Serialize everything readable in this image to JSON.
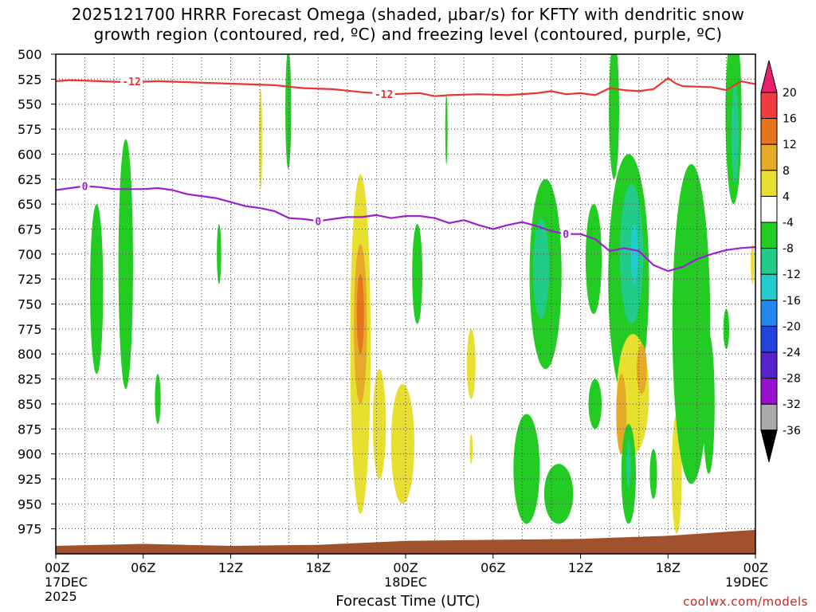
{
  "title": {
    "line1": "2025121700 HRRR Forecast Omega (shaded, μbar/s) for KFTY with dendritic snow",
    "line2": "growth region (contoured, red, ºC) and freezing level (contoured, purple, ºC)"
  },
  "xlabel": "Forecast Time (UTC)",
  "credit": "coolwx.com/models",
  "chart_data": {
    "type": "contour-time-height",
    "station": "KFTY",
    "model": "HRRR",
    "init": "2025121700",
    "x_range_hours": [
      0,
      48
    ],
    "y_range_mb": [
      500,
      1000
    ],
    "y_ticks": [
      500,
      525,
      550,
      575,
      600,
      625,
      650,
      675,
      700,
      725,
      750,
      775,
      800,
      825,
      850,
      875,
      900,
      925,
      950,
      975
    ],
    "x_ticks": [
      {
        "hour": 0,
        "label": "00Z",
        "date": "17DEC",
        "year": "2025"
      },
      {
        "hour": 6,
        "label": "06Z"
      },
      {
        "hour": 12,
        "label": "12Z"
      },
      {
        "hour": 18,
        "label": "18Z"
      },
      {
        "hour": 24,
        "label": "00Z",
        "date": "18DEC"
      },
      {
        "hour": 30,
        "label": "06Z"
      },
      {
        "hour": 36,
        "label": "12Z"
      },
      {
        "hour": 42,
        "label": "18Z"
      },
      {
        "hour": 48,
        "label": "00Z",
        "date": "19DEC"
      }
    ],
    "colorbar": {
      "labels": [
        "20",
        "16",
        "12",
        "8",
        "4",
        "-4",
        "-8",
        "-12",
        "-16",
        "-20",
        "-24",
        "-28",
        "-32",
        "-36"
      ],
      "colors": [
        "#e8206e",
        "#f03c3c",
        "#e8741e",
        "#e4aa28",
        "#e8e030",
        "#ffffff",
        "#22cc22",
        "#22cc88",
        "#22cccc",
        "#2288ee",
        "#2244dd",
        "#5522cc",
        "#9911cc",
        "#aaaaaa",
        "#000000"
      ]
    },
    "contours": {
      "dgz_minus12": {
        "label": "-12",
        "color": "#ee3333",
        "label_positions": [
          {
            "hour": 5.2,
            "mb": 527
          },
          {
            "hour": 22.5,
            "mb": 540
          }
        ],
        "points": [
          [
            0,
            527
          ],
          [
            1,
            526
          ],
          [
            3,
            527
          ],
          [
            5,
            528
          ],
          [
            7,
            527
          ],
          [
            9,
            528
          ],
          [
            11,
            529
          ],
          [
            13,
            530
          ],
          [
            15,
            531
          ],
          [
            17,
            534
          ],
          [
            19,
            535
          ],
          [
            21,
            538
          ],
          [
            23,
            540
          ],
          [
            25,
            539
          ],
          [
            26,
            542
          ],
          [
            27,
            541
          ],
          [
            29,
            540
          ],
          [
            31,
            541
          ],
          [
            33,
            539
          ],
          [
            34,
            537
          ],
          [
            35,
            540
          ],
          [
            36,
            539
          ],
          [
            37,
            541
          ],
          [
            38,
            534
          ],
          [
            39,
            536
          ],
          [
            40,
            537
          ],
          [
            41,
            535
          ],
          [
            42,
            524
          ],
          [
            42.5,
            529
          ],
          [
            43,
            532
          ],
          [
            45,
            533
          ],
          [
            46,
            536
          ],
          [
            47,
            527
          ],
          [
            48,
            530
          ]
        ]
      },
      "freezing_0": {
        "label": "0",
        "color": "#9922cc",
        "label_positions": [
          {
            "hour": 2,
            "mb": 632
          },
          {
            "hour": 18,
            "mb": 667
          },
          {
            "hour": 35,
            "mb": 680
          }
        ],
        "points": [
          [
            0,
            636
          ],
          [
            1,
            634
          ],
          [
            2,
            632
          ],
          [
            3,
            633
          ],
          [
            4,
            635
          ],
          [
            6,
            635
          ],
          [
            7,
            634
          ],
          [
            8,
            636
          ],
          [
            9,
            640
          ],
          [
            10,
            642
          ],
          [
            11,
            644
          ],
          [
            12,
            648
          ],
          [
            13,
            652
          ],
          [
            14,
            654
          ],
          [
            15,
            657
          ],
          [
            16,
            664
          ],
          [
            17,
            665
          ],
          [
            18,
            667
          ],
          [
            19,
            665
          ],
          [
            20,
            663
          ],
          [
            21,
            663
          ],
          [
            22,
            661
          ],
          [
            23,
            664
          ],
          [
            24,
            662
          ],
          [
            25,
            662
          ],
          [
            26,
            664
          ],
          [
            27,
            669
          ],
          [
            28,
            666
          ],
          [
            29,
            671
          ],
          [
            30,
            675
          ],
          [
            31,
            671
          ],
          [
            32,
            668
          ],
          [
            33,
            672
          ],
          [
            34,
            677
          ],
          [
            35,
            680
          ],
          [
            36,
            680
          ],
          [
            37,
            685
          ],
          [
            38,
            697
          ],
          [
            39,
            694
          ],
          [
            40,
            697
          ],
          [
            41,
            711
          ],
          [
            42,
            717
          ],
          [
            43,
            713
          ],
          [
            44,
            705
          ],
          [
            45,
            700
          ],
          [
            46,
            696
          ],
          [
            47,
            694
          ],
          [
            48,
            693
          ]
        ]
      }
    },
    "omega_regions": [
      {
        "level": -8,
        "hour_center": 15.95,
        "mb_center": 555,
        "hour_halfwidth": 0.2,
        "mb_halfheight": 60
      },
      {
        "level": 4,
        "hour_center": 14.05,
        "mb_center": 585,
        "hour_halfwidth": 0.12,
        "mb_halfheight": 50
      },
      {
        "level": -8,
        "hour_center": 2.8,
        "mb_center": 735,
        "hour_halfwidth": 0.45,
        "mb_halfheight": 85
      },
      {
        "level": -8,
        "hour_center": 4.8,
        "mb_center": 710,
        "hour_halfwidth": 0.5,
        "mb_halfheight": 125
      },
      {
        "level": -8,
        "hour_center": 7.0,
        "mb_center": 845,
        "hour_halfwidth": 0.2,
        "mb_halfheight": 25
      },
      {
        "level": -8,
        "hour_center": 11.2,
        "mb_center": 700,
        "hour_halfwidth": 0.15,
        "mb_halfheight": 30
      },
      {
        "level": 4,
        "hour_center": 20.9,
        "mb_center": 790,
        "hour_halfwidth": 0.7,
        "mb_halfheight": 170
      },
      {
        "level": 8,
        "hour_center": 20.9,
        "mb_center": 770,
        "hour_halfwidth": 0.45,
        "mb_halfheight": 80
      },
      {
        "level": 12,
        "hour_center": 20.9,
        "mb_center": 760,
        "hour_halfwidth": 0.25,
        "mb_halfheight": 40
      },
      {
        "level": 4,
        "hour_center": 23.8,
        "mb_center": 890,
        "hour_halfwidth": 0.8,
        "mb_halfheight": 60
      },
      {
        "level": 4,
        "hour_center": 22.2,
        "mb_center": 870,
        "hour_halfwidth": 0.45,
        "mb_halfheight": 55
      },
      {
        "level": -8,
        "hour_center": 24.8,
        "mb_center": 720,
        "hour_halfwidth": 0.35,
        "mb_halfheight": 50
      },
      {
        "level": -8,
        "hour_center": 26.8,
        "mb_center": 575,
        "hour_halfwidth": 0.08,
        "mb_halfheight": 35
      },
      {
        "level": 4,
        "hour_center": 28.5,
        "mb_center": 810,
        "hour_halfwidth": 0.3,
        "mb_halfheight": 35
      },
      {
        "level": 4,
        "hour_center": 28.5,
        "mb_center": 895,
        "hour_halfwidth": 0.1,
        "mb_halfheight": 15
      },
      {
        "level": -8,
        "hour_center": 33.6,
        "mb_center": 720,
        "hour_halfwidth": 1.1,
        "mb_halfheight": 95
      },
      {
        "level": -12,
        "hour_center": 33.3,
        "mb_center": 715,
        "hour_halfwidth": 0.55,
        "mb_halfheight": 50
      },
      {
        "level": -8,
        "hour_center": 32.3,
        "mb_center": 915,
        "hour_halfwidth": 0.9,
        "mb_halfheight": 55
      },
      {
        "level": -8,
        "hour_center": 34.5,
        "mb_center": 940,
        "hour_halfwidth": 1.0,
        "mb_halfheight": 30
      },
      {
        "level": -8,
        "hour_center": 36.9,
        "mb_center": 705,
        "hour_halfwidth": 0.55,
        "mb_halfheight": 55
      },
      {
        "level": -8,
        "hour_center": 37.0,
        "mb_center": 850,
        "hour_halfwidth": 0.45,
        "mb_halfheight": 25
      },
      {
        "level": -8,
        "hour_center": 38.3,
        "mb_center": 555,
        "hour_halfwidth": 0.35,
        "mb_halfheight": 70
      },
      {
        "level": -8,
        "hour_center": 39.3,
        "mb_center": 725,
        "hour_halfwidth": 1.4,
        "mb_halfheight": 125
      },
      {
        "level": -12,
        "hour_center": 39.5,
        "mb_center": 700,
        "hour_halfwidth": 0.8,
        "mb_halfheight": 70
      },
      {
        "level": -16,
        "hour_center": 39.7,
        "mb_center": 700,
        "hour_halfwidth": 0.25,
        "mb_halfheight": 30
      },
      {
        "level": 4,
        "hour_center": 39.6,
        "mb_center": 840,
        "hour_halfwidth": 1.1,
        "mb_halfheight": 60
      },
      {
        "level": 8,
        "hour_center": 38.8,
        "mb_center": 860,
        "hour_halfwidth": 0.35,
        "mb_halfheight": 40
      },
      {
        "level": 8,
        "hour_center": 40.2,
        "mb_center": 815,
        "hour_halfwidth": 0.35,
        "mb_halfheight": 25
      },
      {
        "level": -8,
        "hour_center": 39.3,
        "mb_center": 920,
        "hour_halfwidth": 0.5,
        "mb_halfheight": 50
      },
      {
        "level": -12,
        "hour_center": 39.3,
        "mb_center": 910,
        "hour_halfwidth": 0.15,
        "mb_halfheight": 25
      },
      {
        "level": -8,
        "hour_center": 41.0,
        "mb_center": 920,
        "hour_halfwidth": 0.25,
        "mb_halfheight": 25
      },
      {
        "level": 4,
        "hour_center": 42.6,
        "mb_center": 920,
        "hour_halfwidth": 0.35,
        "mb_halfheight": 60
      },
      {
        "level": -8,
        "hour_center": 43.6,
        "mb_center": 770,
        "hour_halfwidth": 1.3,
        "mb_halfheight": 160
      },
      {
        "level": -8,
        "hour_center": 46.5,
        "mb_center": 560,
        "hour_halfwidth": 0.55,
        "mb_halfheight": 90
      },
      {
        "level": -12,
        "hour_center": 46.6,
        "mb_center": 580,
        "hour_halfwidth": 0.25,
        "mb_halfheight": 50
      },
      {
        "level": -8,
        "hour_center": 46.0,
        "mb_center": 775,
        "hour_halfwidth": 0.2,
        "mb_halfheight": 20
      },
      {
        "level": -8,
        "hour_center": 44.8,
        "mb_center": 850,
        "hour_halfwidth": 0.4,
        "mb_halfheight": 70
      },
      {
        "level": 4,
        "hour_center": 47.8,
        "mb_center": 710,
        "hour_halfwidth": 0.12,
        "mb_halfheight": 20
      }
    ],
    "terrain": {
      "color": "#a0522d",
      "points": [
        [
          0,
          992
        ],
        [
          6,
          990
        ],
        [
          12,
          992
        ],
        [
          18,
          991
        ],
        [
          24,
          987
        ],
        [
          30,
          986
        ],
        [
          36,
          985
        ],
        [
          42,
          982
        ],
        [
          48,
          976
        ]
      ]
    }
  }
}
